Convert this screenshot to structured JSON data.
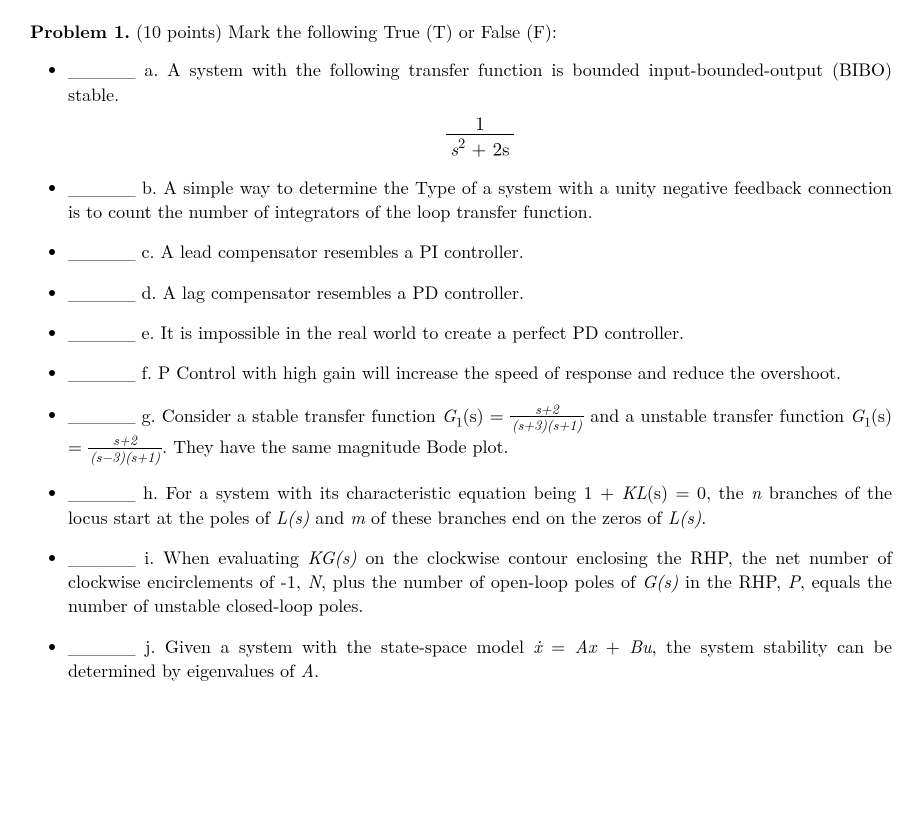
{
  "heading": {
    "label": "Problem 1.",
    "points": "(10 points)",
    "instruction": "Mark the following True (T) or False (F):"
  },
  "blank": "_____",
  "items": {
    "a": {
      "letter": "a.",
      "text": "A system with the following transfer function is bounded input-bounded-output (BIBO) stable.",
      "formula_num": "1",
      "formula_den_base": "s",
      "formula_den_exp": "2",
      "formula_den_rest": " + 2s"
    },
    "b": {
      "letter": "b.",
      "text": "A simple way to determine the Type of a system with a unity negative feedback connection is to count the number of integrators of the loop transfer function."
    },
    "c": {
      "letter": "c.",
      "text": "A lead compensator resembles a PI controller."
    },
    "d": {
      "letter": "d.",
      "text": "A lag compensator resembles a PD controller."
    },
    "e": {
      "letter": "e.",
      "text": "It is impossible in the real world to create a perfect PD controller."
    },
    "f": {
      "letter": "f.",
      "text": "P Control with high gain will increase the speed of response and reduce the overshoot."
    },
    "g": {
      "letter": "g.",
      "pre": "Consider a stable transfer function ",
      "G1s": "G",
      "G1sub": "1",
      "G1arg": "(s) = ",
      "f1_num": "s+2",
      "f1_den": "(s+3)(s+1)",
      "mid": " and a unstable transfer function ",
      "G2s": "G",
      "G2sub": "1",
      "G2arg": "(s) = ",
      "f2_num": "s+2",
      "f2_den": "(s−3)(s+1)",
      "post": ". They have the same magnitude Bode plot."
    },
    "h": {
      "letter": "h.",
      "t1": "For a system with its characteristic equation being 1 + ",
      "KL": "KL",
      "KLarg": "(s) = 0, the ",
      "n": "n",
      "t2": " branches of the locus start at the poles of ",
      "Ls1": "L(s)",
      "t3": " and ",
      "m": "m",
      "t4": " of these branches end on the zeros of ",
      "Ls2": "L(s)",
      "t5": "."
    },
    "i": {
      "letter": "i.",
      "t1": "When evaluating ",
      "KGs": "KG(s)",
      "t2": " on the clockwise contour enclosing the RHP, the net number of clockwise encirclements of -1, ",
      "N": "N",
      "t3": ", plus the number of open-loop poles of ",
      "Gs": "G(s)",
      "t4": " in the RHP, ",
      "P": "P",
      "t5": ", equals the number of unstable closed-loop poles."
    },
    "j": {
      "letter": "j.",
      "t1": "Given a system with the state-space model ",
      "xdot": "ẋ",
      "eq": " = ",
      "Ax": "Ax",
      "plus": " + ",
      "Bu": "Bu",
      "t2": ", the system stability can be determined by eigenvalues of ",
      "A": "A",
      "t3": "."
    }
  }
}
